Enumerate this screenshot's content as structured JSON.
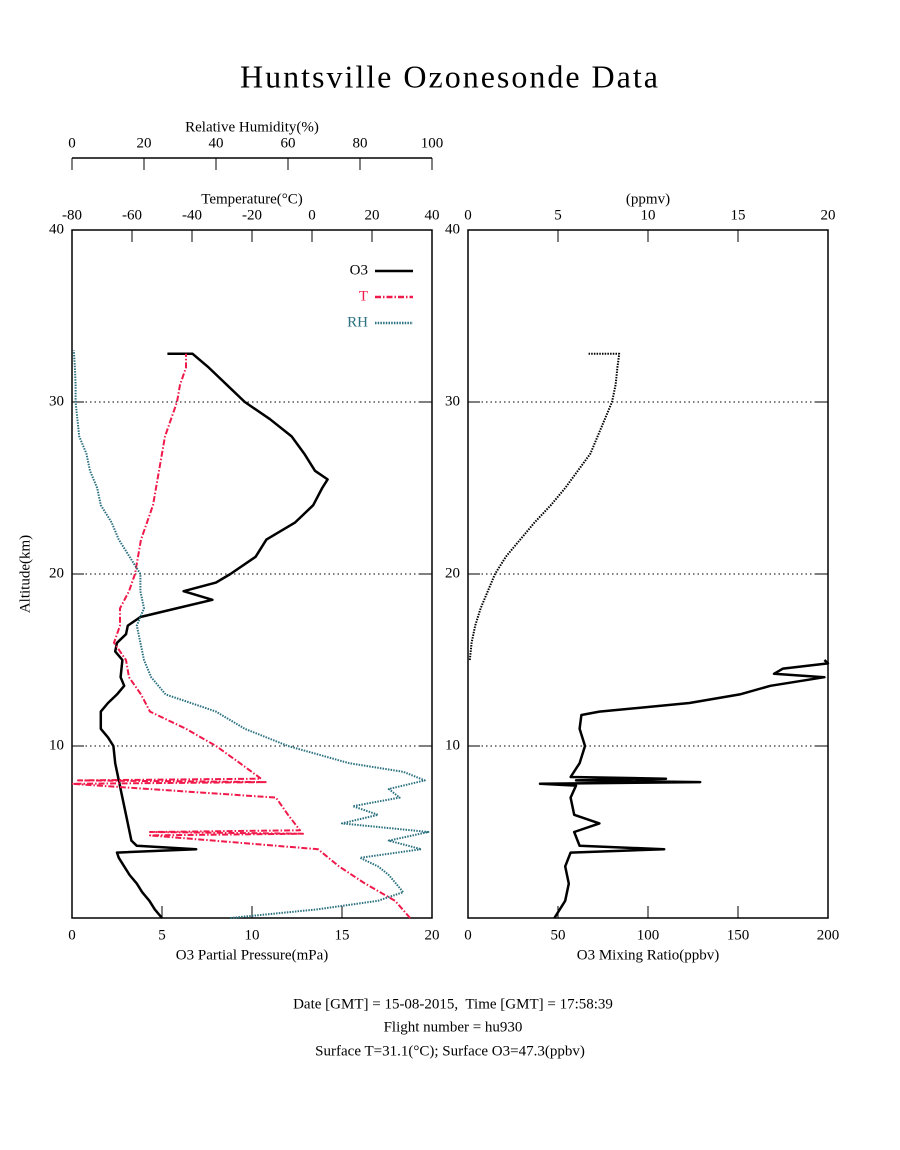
{
  "title": "Huntsville Ozonesonde Data",
  "footer": [
    "Date [GMT] = 15-08-2015,  Time [GMT] = 17:58:39",
    "Flight number = hu930",
    "Surface T=31.1(°C); Surface O3=47.3(ppbv)"
  ],
  "chart_data": [
    {
      "type": "line",
      "ylabel": "Altitude(km)",
      "ylim": [
        0,
        40
      ],
      "yticks": [
        10,
        20,
        30,
        40
      ],
      "grid": true,
      "legend": "upper right",
      "xlabel": "O3 Partial Pressure(mPa)",
      "xlim": [
        0,
        20
      ],
      "xticks": [
        0,
        5,
        10,
        15,
        20
      ],
      "x2label": "Temperature(°C)",
      "x2lim": [
        -80,
        40
      ],
      "x2ticks": [
        -80,
        -60,
        -40,
        -20,
        0,
        20,
        40
      ],
      "x3label": "Relative Humidity(%)",
      "x3lim": [
        0,
        100
      ],
      "x3ticks": [
        0,
        20,
        40,
        60,
        80,
        100
      ],
      "series": [
        {
          "name": "O3",
          "color": "#000000",
          "axis": "x",
          "line_style": "solid",
          "altitude": [
            0,
            0.5,
            1,
            1.5,
            2,
            2.5,
            3,
            3.5,
            3.8,
            4.0,
            4.2,
            4.5,
            5,
            6,
            7,
            8,
            9,
            10,
            10.5,
            11,
            12,
            12.5,
            13,
            13.5,
            14,
            15,
            15.5,
            16,
            16.5,
            17,
            17.5,
            18,
            18.5,
            19,
            19.5,
            20,
            21,
            22,
            23,
            24,
            25,
            25.5,
            26,
            27,
            28,
            29,
            30,
            31,
            32,
            32.8,
            32.8
          ],
          "values": [
            5.0,
            4.6,
            4.3,
            3.9,
            3.6,
            3.2,
            2.9,
            2.6,
            2.5,
            6.9,
            3.6,
            3.3,
            3.2,
            3.0,
            2.8,
            2.6,
            2.4,
            2.3,
            2.0,
            1.6,
            1.6,
            2.0,
            2.5,
            2.9,
            2.7,
            2.8,
            2.4,
            2.5,
            3.0,
            3.1,
            3.8,
            5.8,
            7.8,
            6.2,
            8.0,
            8.8,
            10.2,
            10.8,
            12.4,
            13.4,
            13.9,
            14.2,
            13.5,
            12.9,
            12.2,
            11.0,
            9.6,
            8.6,
            7.6,
            6.7,
            5.3
          ]
        },
        {
          "name": "T",
          "color": "#f0194a",
          "axis": "x2",
          "line_style": "dashdot",
          "altitude": [
            0,
            1,
            2,
            3,
            4,
            4.8,
            4.9,
            5.0,
            5.1,
            6,
            7,
            7.8,
            7.9,
            8.0,
            8.1,
            9,
            10,
            11,
            12,
            13,
            14,
            15,
            16,
            17,
            18,
            19,
            20,
            21,
            22,
            23,
            24,
            25,
            26,
            27,
            28,
            29,
            30,
            31,
            32,
            32.8
          ],
          "values": [
            32.7,
            27.7,
            17.7,
            9,
            2,
            -54,
            -3,
            -54,
            -4,
            -8,
            -12,
            -80,
            -15,
            -78,
            -17,
            -24,
            -32,
            -42,
            -54,
            -57,
            -61,
            -62,
            -66,
            -64,
            -64,
            -61,
            -59,
            -58,
            -57,
            -55,
            -53,
            -52,
            -51,
            -50,
            -49,
            -47,
            -45,
            -44,
            -42,
            -42
          ]
        },
        {
          "name": "RH",
          "color": "#2b7180",
          "axis": "x3",
          "line_style": "dotted",
          "altitude": [
            0,
            0.5,
            1,
            1.5,
            2,
            2.5,
            3,
            3.5,
            4,
            4.5,
            5,
            5.5,
            6,
            6.5,
            7,
            7.5,
            8,
            8.5,
            9,
            10,
            11,
            12,
            13,
            14,
            15,
            16,
            17,
            18,
            19,
            20,
            21,
            22,
            23,
            24,
            25,
            26,
            27,
            28,
            29,
            30,
            31,
            32,
            33
          ],
          "values": [
            44,
            68,
            85,
            92,
            90,
            88,
            85,
            80,
            97,
            88,
            99,
            75,
            85,
            78,
            91,
            88,
            98,
            92,
            77,
            60,
            48,
            40,
            26,
            22,
            20,
            19,
            18,
            20,
            19,
            19,
            16,
            13,
            11,
            8,
            7,
            5,
            4,
            2,
            1.5,
            1,
            1,
            0.8,
            0.5
          ]
        }
      ]
    },
    {
      "type": "line",
      "ylim": [
        0,
        40
      ],
      "yticks": [
        10,
        20,
        30,
        40
      ],
      "grid": true,
      "xlabel": "O3 Mixing Ratio(ppbv)",
      "xlim": [
        0,
        200
      ],
      "xticks": [
        0,
        50,
        100,
        150,
        200
      ],
      "x2label": "(ppmv)",
      "x2lim": [
        0,
        20
      ],
      "x2ticks": [
        0,
        5,
        10,
        15,
        20
      ],
      "series": [
        {
          "color": "#000000",
          "axis": "x",
          "line_style": "solid",
          "altitude": [
            0,
            1,
            2,
            3,
            3.8,
            4.0,
            4.2,
            5,
            5.5,
            6,
            7,
            7.7,
            7.8,
            7.9,
            8.0,
            8.1,
            8.2,
            9,
            10,
            11,
            11.8,
            12,
            12.5,
            13,
            13.5,
            14,
            14.2,
            14.5,
            14.8,
            15
          ],
          "values": [
            48,
            54,
            56,
            54,
            57,
            109,
            62,
            59,
            73,
            59,
            57,
            60,
            40,
            129,
            60,
            110,
            57,
            62,
            65,
            62,
            63,
            73,
            123,
            151,
            168,
            198,
            170,
            175,
            200,
            198
          ]
        },
        {
          "color": "#000000",
          "axis": "x2",
          "line_style": "dotted",
          "altitude": [
            15,
            16,
            17,
            18,
            19,
            20,
            21,
            22,
            23,
            24,
            25,
            26,
            27,
            28,
            29,
            30,
            31,
            32,
            32.8,
            32.8
          ],
          "values": [
            0.1,
            0.2,
            0.4,
            0.7,
            1.1,
            1.5,
            2.1,
            2.9,
            3.7,
            4.6,
            5.4,
            6.1,
            6.8,
            7.2,
            7.6,
            8.0,
            8.2,
            8.3,
            8.4,
            6.7
          ]
        }
      ]
    }
  ]
}
